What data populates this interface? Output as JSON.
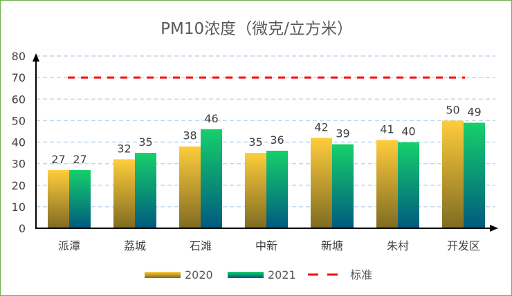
{
  "chart_data": {
    "type": "bar",
    "title": "PM10浓度（微克/立方米）",
    "categories": [
      "派潭",
      "荔城",
      "石滩",
      "中新",
      "新塘",
      "朱村",
      "开发区"
    ],
    "series": [
      {
        "name": "2020",
        "values": [
          27,
          32,
          38,
          35,
          42,
          41,
          50
        ],
        "color_top": "#ffcd3c",
        "color_bottom": "#7f6b22"
      },
      {
        "name": "2021",
        "values": [
          27,
          35,
          46,
          36,
          39,
          40,
          49
        ],
        "color_top": "#16d06a",
        "color_bottom": "#005a80"
      }
    ],
    "reference_line": {
      "name": "标准",
      "value": 70,
      "color": "#ff0000",
      "style": "dashed"
    },
    "ylim": [
      0,
      80
    ],
    "yticks": [
      0,
      10,
      20,
      30,
      40,
      50,
      60,
      70,
      80
    ],
    "grid": true,
    "data_labels": true,
    "legend_position": "bottom"
  },
  "frame_color": "#70ad47"
}
